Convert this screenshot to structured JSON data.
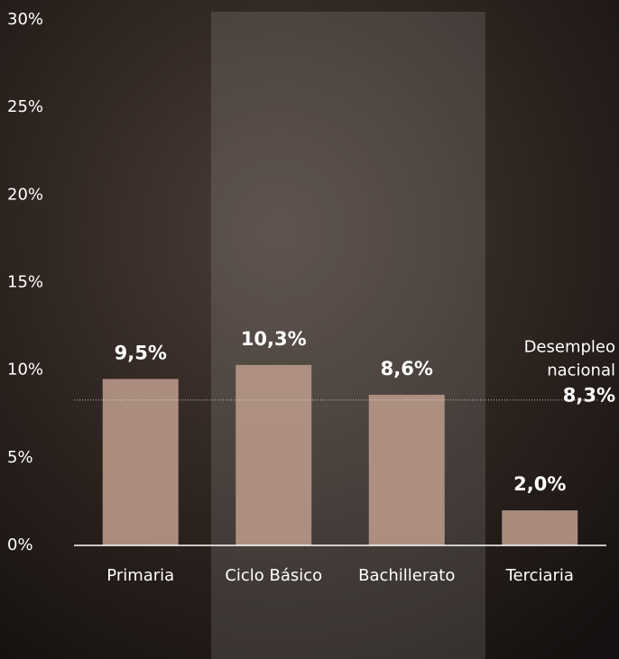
{
  "chart_data": {
    "type": "bar",
    "categories": [
      "Primaria",
      "Ciclo Básico",
      "Bachillerato",
      "Terciaria"
    ],
    "values": [
      9.5,
      10.3,
      8.6,
      2.0
    ],
    "value_labels": [
      "9,5%",
      "10,3%",
      "8,6%",
      "2,0%"
    ],
    "color": "#b8988a",
    "ylim": [
      0,
      30
    ],
    "yticks": [
      {
        "value": 0,
        "label": "0%"
      },
      {
        "value": 5,
        "label": "5%"
      },
      {
        "value": 10,
        "label": "10%"
      },
      {
        "value": 15,
        "label": "15%"
      },
      {
        "value": 20,
        "label": "20%"
      },
      {
        "value": 25,
        "label": "25%"
      },
      {
        "value": 30,
        "label": "30%"
      }
    ],
    "reference_line": {
      "label_lines": [
        "Desempleo",
        "nacional"
      ],
      "value": 8.3,
      "value_label": "8,3%"
    }
  }
}
